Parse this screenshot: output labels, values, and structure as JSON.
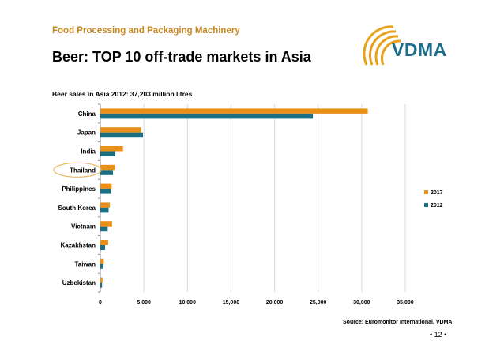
{
  "header": {
    "kicker": "Food Processing and Packaging Machinery",
    "title": "Beer: TOP 10 off-trade markets in Asia",
    "logo_text": "VDMA"
  },
  "footer": {
    "source": "Source: Euromonitor International, VDMA",
    "page_number": "• 12 •"
  },
  "colors": {
    "series_2017": "#e8901a",
    "series_2012": "#1c6f82",
    "kicker": "#c9881f",
    "logo": "#1d6e8a",
    "highlight_ring": "#e6b85c"
  },
  "chart_data": {
    "type": "bar",
    "orientation": "horizontal",
    "title": "Beer sales in Asia 2012: 37,203 million litres",
    "categories": [
      "China",
      "Japan",
      "India",
      "Thailand",
      "Philippines",
      "South Korea",
      "Vietnam",
      "Kazakhstan",
      "Taiwan",
      "Uzbekistan"
    ],
    "series": [
      {
        "name": "2017",
        "values": [
          30700,
          4700,
          2600,
          1700,
          1300,
          1100,
          1350,
          900,
          400,
          250
        ]
      },
      {
        "name": "2012",
        "values": [
          24400,
          4900,
          1700,
          1450,
          1250,
          950,
          850,
          550,
          350,
          200
        ]
      }
    ],
    "xlim": [
      0,
      35000
    ],
    "xticks": [
      0,
      5000,
      10000,
      15000,
      20000,
      25000,
      30000,
      35000
    ],
    "xtick_labels": [
      "0",
      "5,000",
      "10,000",
      "15,000",
      "20,000",
      "25,000",
      "30,000",
      "35,000"
    ],
    "grid": true,
    "legend": "right",
    "highlighted_category": "Thailand"
  }
}
